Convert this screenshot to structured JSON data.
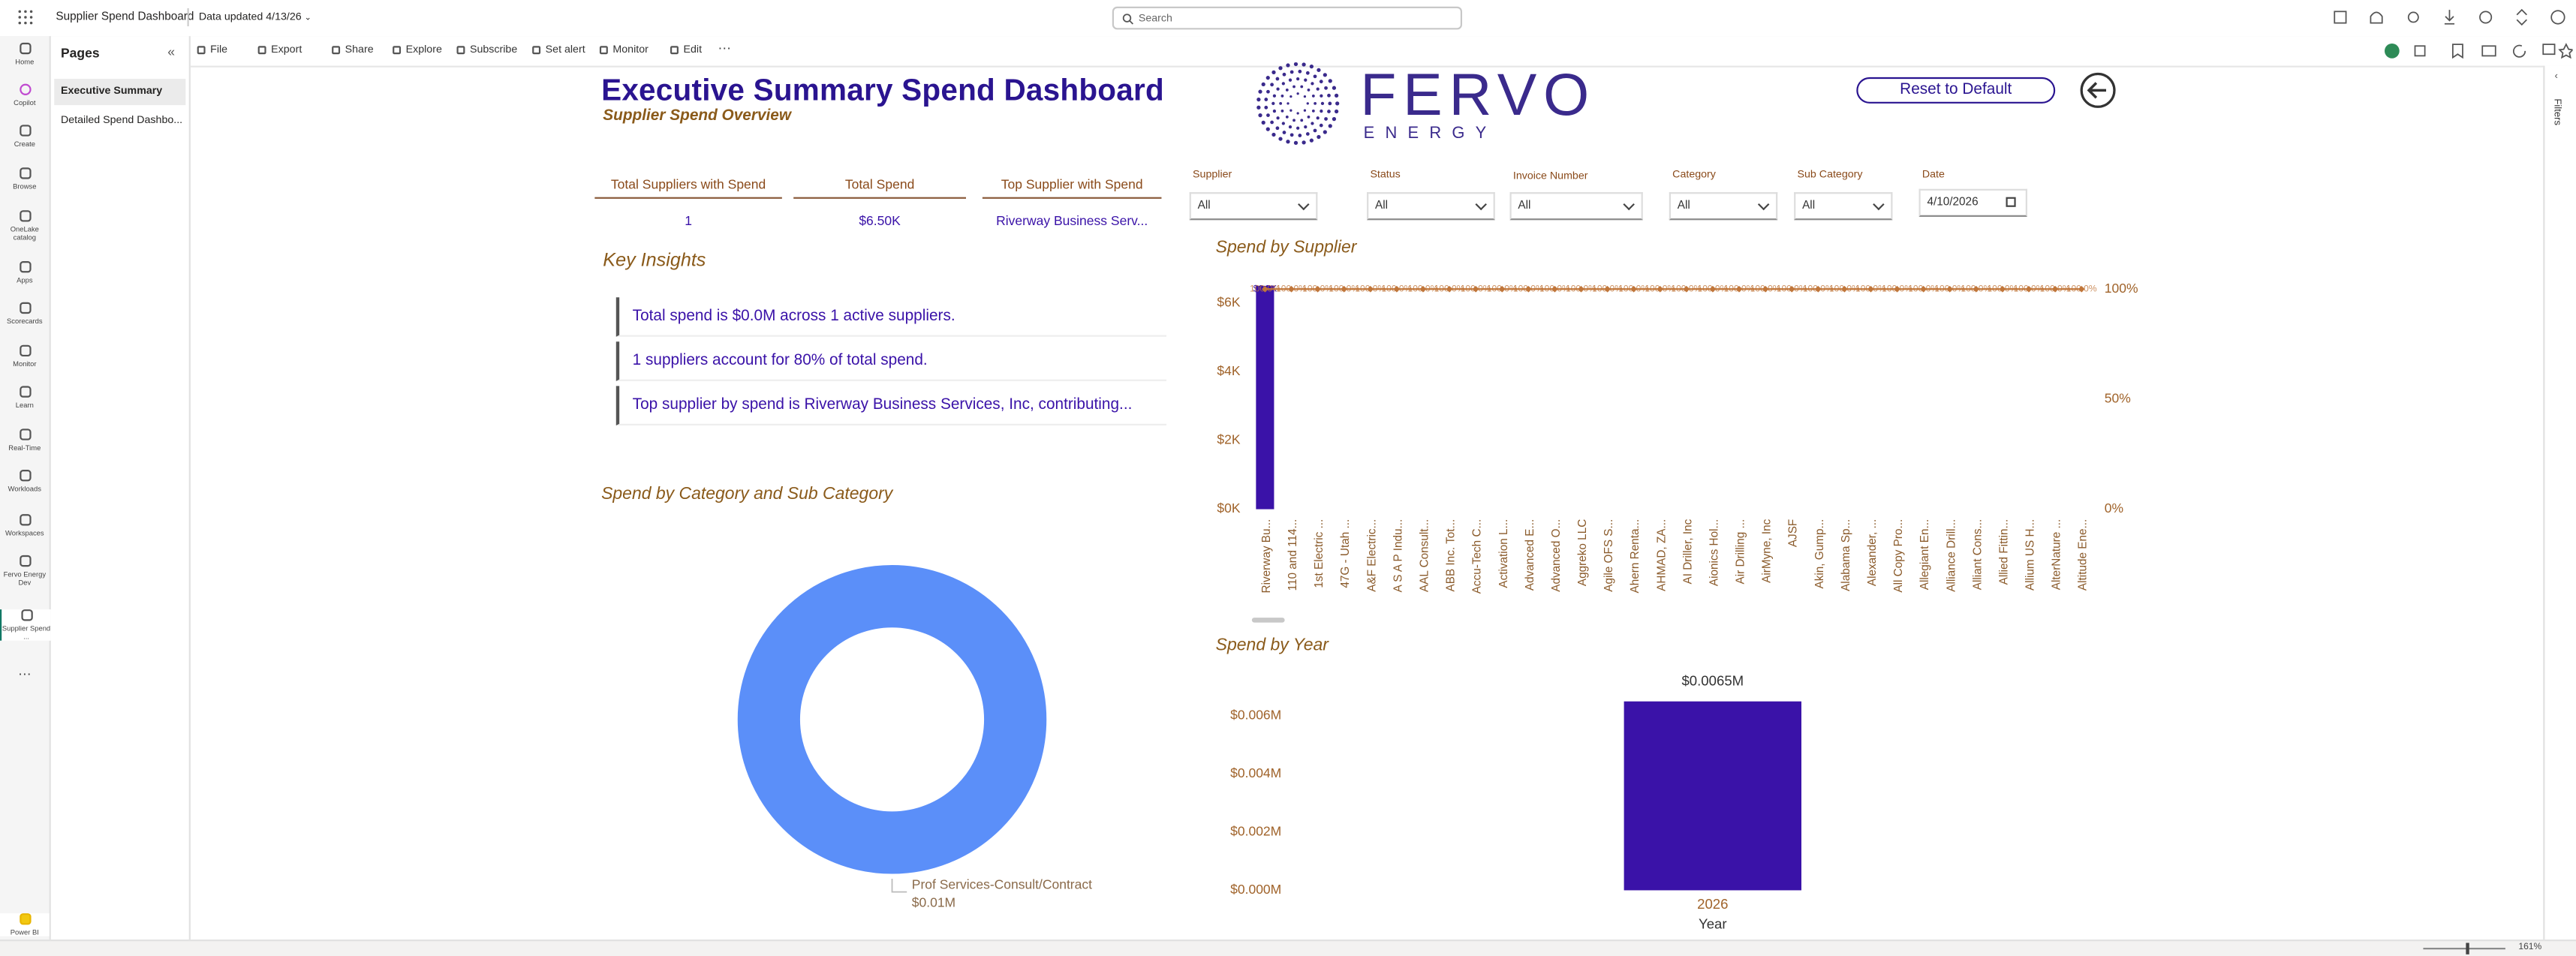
{
  "app_bar": {
    "report_name": "Supplier Spend Dashboard",
    "data_updated": "Data updated 4/13/26",
    "search": "Search"
  },
  "nav": [
    "Home",
    "Copilot",
    "Create",
    "Browse",
    "OneLake catalog",
    "Apps",
    "Scorecards",
    "Monitor",
    "Learn",
    "Real-Time",
    "Workloads",
    "Workspaces",
    "Fervo Energy Dev",
    "Supplier Spend ...",
    "Power BI"
  ],
  "pages": {
    "title": "Pages",
    "items": [
      "Executive Summary",
      "Detailed Spend Dashbo..."
    ]
  },
  "toolbar": [
    "File",
    "Export",
    "Share",
    "Explore",
    "Subscribe",
    "Set alert",
    "Monitor",
    "Edit"
  ],
  "report": {
    "title": "Executive Summary Spend Dashboard",
    "subtitle": "Supplier Spend Overview",
    "logo": {
      "name": "FERVO",
      "tagline": "ENERGY"
    },
    "reset_button": "Reset to Default",
    "cards": [
      {
        "label": "Total Suppliers with Spend",
        "value": 1
      },
      {
        "label": "Total Spend",
        "value": "$6.50K"
      },
      {
        "label": "Top Supplier with Spend",
        "value": "Riverway Business Serv..."
      }
    ],
    "slicers": [
      {
        "label": "Supplier",
        "value": "All"
      },
      {
        "label": "Status",
        "value": "All"
      },
      {
        "label": "Invoice Number",
        "value": "All"
      },
      {
        "label": "Category",
        "value": "All"
      },
      {
        "label": "Sub Category",
        "value": "All"
      },
      {
        "label": "Date",
        "value": "4/10/2026"
      }
    ],
    "key_insights": {
      "title": "Key Insights",
      "items": [
        "Total spend is $0.0M across 1 active suppliers.",
        "1 suppliers account for 80% of total spend.",
        "Top supplier by spend is Riverway Business Services, Inc, contributing..."
      ]
    },
    "charts": [
      {
        "type": "combo",
        "title": "Spend by Supplier",
        "categories": [
          "Riverway Bu...",
          "110 and 114...",
          "1st Electric ...",
          "47G - Utah ...",
          "A&F Electric...",
          "A S A P Indu...",
          "AAL Consult...",
          "ABB Inc. Tot...",
          "Accu-Tech C...",
          "Activation L...",
          "Advanced E...",
          "Advanced O...",
          "Aggreko LLC",
          "Agile OFS S...",
          "Ahern Renta...",
          "AHMAD, ZA...",
          "AI Driller, Inc",
          "Aionics Hol...",
          "Air Drilling ...",
          "AirMyne, Inc",
          "AJSF",
          "Akin, Gump...",
          "Alabama Sp...",
          "Alexander, ...",
          "All Copy Pro...",
          "Allegiant En...",
          "Alliance Drill...",
          "Alliant Cons...",
          "Allied Fittin...",
          "Allium US H...",
          "AlterNature ...",
          "Altitude Ene..."
        ],
        "series": [
          {
            "type": "bar",
            "color": "#3a12a8",
            "values": [
              6500,
              0,
              0,
              0,
              0,
              0,
              0,
              0,
              0,
              0,
              0,
              0,
              0,
              0,
              0,
              0,
              0,
              0,
              0,
              0,
              0,
              0,
              0,
              0,
              0,
              0,
              0,
              0,
              0,
              0,
              0,
              0
            ],
            "value_labels": [
              "$6.5K",
              null,
              null,
              null,
              null,
              null,
              null,
              null,
              null,
              null,
              null,
              null,
              null,
              null,
              null,
              null,
              null,
              null,
              null,
              null,
              null,
              null,
              null,
              null,
              null,
              null,
              null,
              null,
              null,
              null,
              null,
              null
            ]
          },
          {
            "type": "line",
            "axis": "y2",
            "color": "#c0763a",
            "values": [
              100,
              100,
              100,
              100,
              100,
              100,
              100,
              100,
              100,
              100,
              100,
              100,
              100,
              100,
              100,
              100,
              100,
              100,
              100,
              100,
              100,
              100,
              100,
              100,
              100,
              100,
              100,
              100,
              100,
              100,
              100,
              100
            ],
            "value_labels": [
              "100.0%",
              "100.0%",
              "100.0%",
              "100.0%",
              "100.0%",
              "100.0%",
              "100.0%",
              "100.0%",
              "100.0%",
              "100.0%",
              "100.0%",
              "100.0%",
              "100.0%",
              "100.0%",
              "100.0%",
              "100.0%",
              "100.0%",
              "100.0%",
              "100.0%",
              "100.0%",
              "100.0%",
              "100.0%",
              "100.0%",
              "100.0%",
              "100.0%",
              "100.0%",
              "100.0%",
              "100.0%",
              "100.0%",
              "100.0%",
              "100.0%",
              "100.0%"
            ]
          }
        ],
        "ylim": [
          0,
          6500
        ],
        "yticks": [
          {
            "value": 0,
            "label": "$0K"
          },
          {
            "value": 2000,
            "label": "$2K"
          },
          {
            "value": 4000,
            "label": "$4K"
          },
          {
            "value": 6000,
            "label": "$6K"
          }
        ],
        "y2lim": [
          0,
          100
        ],
        "y2ticks": [
          {
            "value": 0,
            "label": "0%"
          },
          {
            "value": 50,
            "label": "50%"
          },
          {
            "value": 100,
            "label": "100%"
          }
        ],
        "grid": false
      },
      {
        "type": "donut",
        "title": "Spend by Category and Sub Category",
        "categories": [
          "Prof Services-Consult/Contract"
        ],
        "values": [
          0.01
        ],
        "value_labels": [
          "$0.01M"
        ],
        "colors": [
          "#5b8ff9"
        ]
      },
      {
        "type": "bar",
        "title": "Spend by Year",
        "x_label": "Year",
        "categories": [
          "2026"
        ],
        "values": [
          0.0065
        ],
        "value_labels": [
          "$0.0065M"
        ],
        "color": "#3a12a8",
        "ylim": [
          0,
          0.0065
        ],
        "yticks": [
          {
            "value": 0,
            "label": "$0.000M"
          },
          {
            "value": 0.002,
            "label": "$0.002M"
          },
          {
            "value": 0.004,
            "label": "$0.004M"
          },
          {
            "value": 0.006,
            "label": "$0.006M"
          }
        ],
        "grid": false
      }
    ]
  },
  "filters_pane": "Filters",
  "zoom": "161%"
}
